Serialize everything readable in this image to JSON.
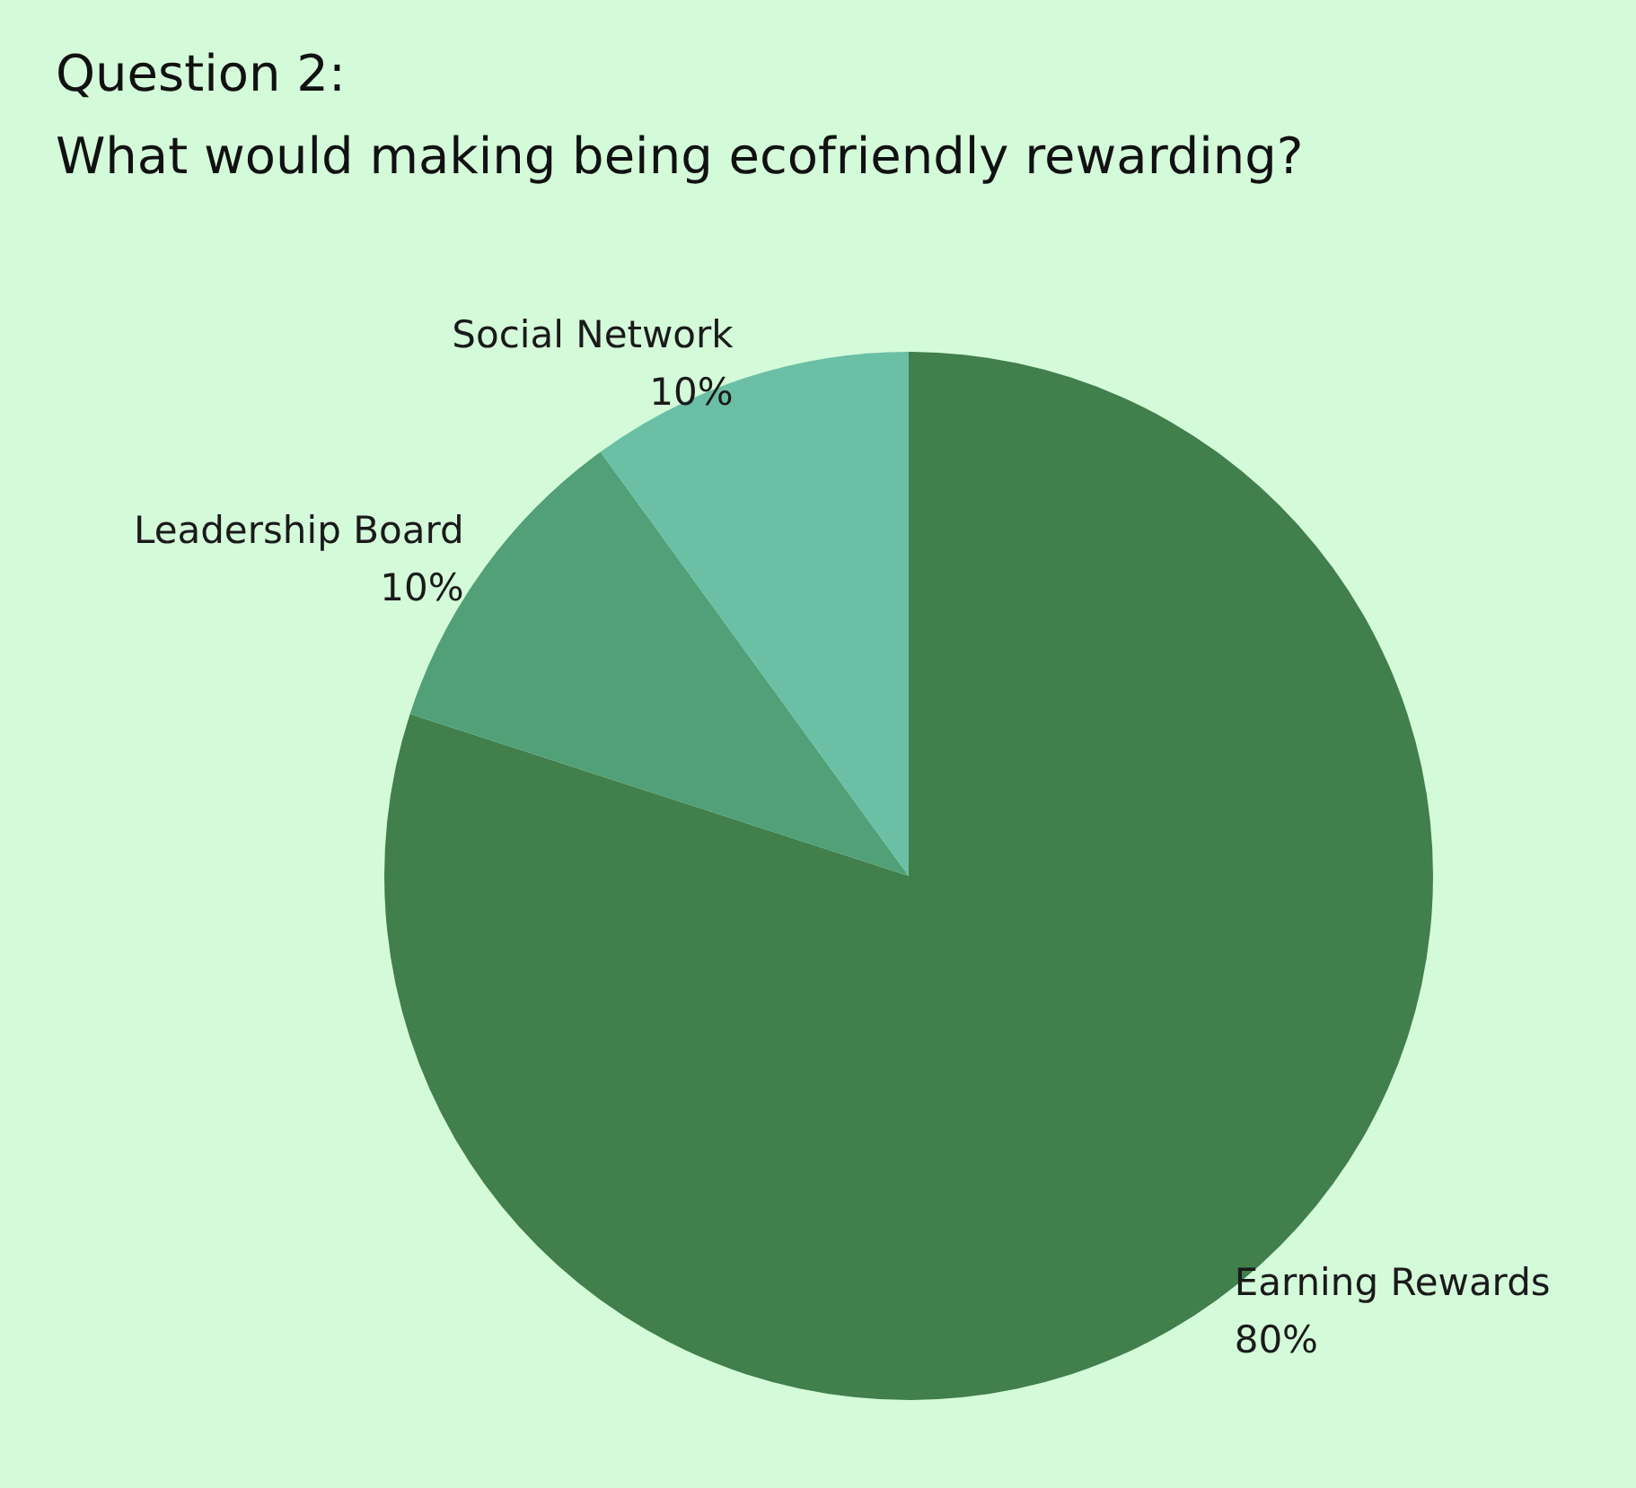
{
  "chart_data": {
    "type": "pie",
    "title": "Question 2:",
    "subtitle": "What would making being ecofriendly rewarding?",
    "categories": [
      "Earning Rewards",
      "Leadership Board",
      "Social Network"
    ],
    "values": [
      80,
      10,
      10
    ],
    "colors": [
      "#417f4c",
      "#52a077",
      "#6bbfa5"
    ],
    "value_labels": [
      "80%",
      "10%",
      "10%"
    ]
  }
}
